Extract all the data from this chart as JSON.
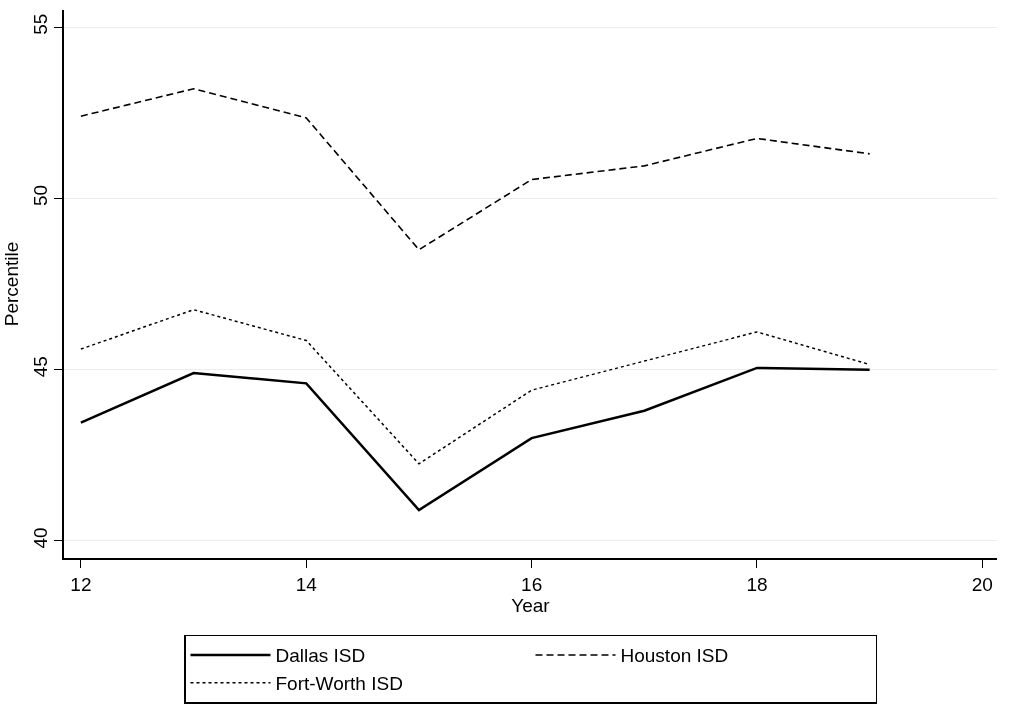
{
  "chart_data": {
    "type": "line",
    "xlabel": "Year",
    "ylabel": "Percentile",
    "x": [
      12,
      13,
      14,
      15,
      16,
      17,
      18,
      19
    ],
    "series": [
      {
        "name": "Dallas ISD",
        "color": "#000000",
        "line_style": "solid",
        "values": [
          43.45,
          44.9,
          44.6,
          40.9,
          43.0,
          43.8,
          45.05,
          45.0
        ]
      },
      {
        "name": "Houston ISD",
        "color": "#000000",
        "line_style": "dashed",
        "values": [
          52.4,
          53.2,
          52.35,
          48.5,
          50.55,
          50.95,
          51.75,
          51.3
        ]
      },
      {
        "name": "Fort-Worth ISD",
        "color": "#000000",
        "line_style": "dotted",
        "values": [
          45.6,
          46.75,
          45.85,
          42.25,
          44.4,
          45.25,
          46.1,
          45.15
        ]
      }
    ],
    "xlim": [
      11.85,
      20.13
    ],
    "xticks": [
      12,
      14,
      16,
      18,
      20
    ],
    "ylim": [
      39.5,
      55.5
    ],
    "yticks": [
      40,
      45,
      50,
      55
    ],
    "grid": "y",
    "legend": "bottom",
    "marker": "none"
  }
}
